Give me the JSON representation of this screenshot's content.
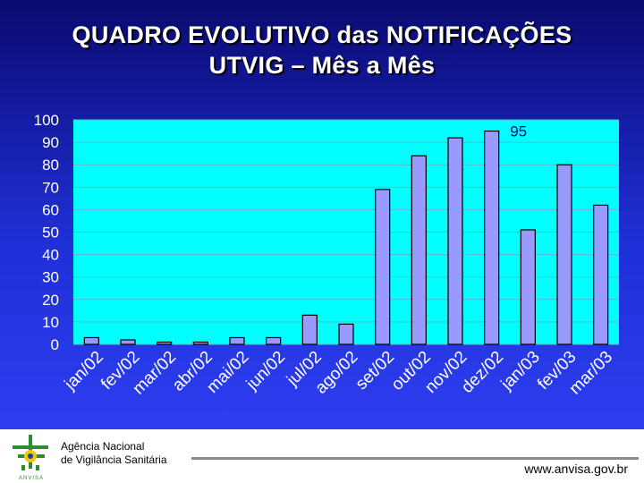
{
  "title_line1": "QUADRO EVOLUTIVO das NOTIFICAÇÕES",
  "title_line2": "UTVIG – Mês a Mês",
  "footer": {
    "agency_line1": "Agência Nacional",
    "agency_line2": "de Vigilância Sanitária",
    "logo_text": "ANVISA",
    "website": "www.anvisa.gov.br"
  },
  "colors": {
    "plot_background": "#00ffff",
    "bar_fill": "#9999ff",
    "bar_stroke": "#000000",
    "text": "#ffffff",
    "data_label": "#000080"
  },
  "chart_data": {
    "type": "bar",
    "categories": [
      "jan/02",
      "fev/02",
      "mar/02",
      "abr/02",
      "mai/02",
      "jun/02",
      "jul/02",
      "ago/02",
      "set/02",
      "out/02",
      "nov/02",
      "dez/02",
      "jan/03",
      "fev/03",
      "mar/03"
    ],
    "values": [
      3,
      2,
      1,
      1,
      3,
      3,
      13,
      9,
      69,
      84,
      92,
      95,
      51,
      80,
      62
    ],
    "ylim": [
      0,
      100
    ],
    "yticks": [
      0,
      10,
      20,
      30,
      40,
      50,
      60,
      70,
      80,
      90,
      100
    ],
    "grid": true,
    "legend": "none",
    "data_labels": [
      {
        "category": "dez/02",
        "text": "95"
      }
    ],
    "title": "",
    "xlabel": "",
    "ylabel": ""
  }
}
